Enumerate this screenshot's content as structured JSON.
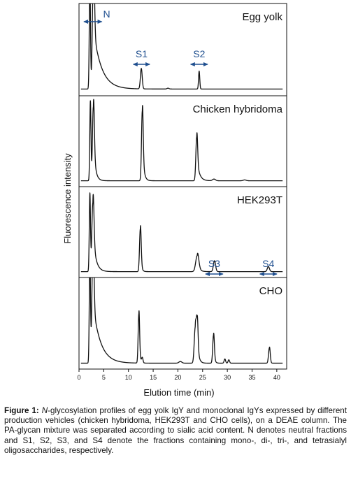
{
  "chart_data": {
    "type": "line",
    "stacked_panels": true,
    "xlabel": "Elution time (min)",
    "ylabel": "Fluorescence intensity",
    "xlim": [
      0,
      42
    ],
    "x_ticks": [
      0,
      5,
      10,
      15,
      20,
      25,
      30,
      35,
      40
    ],
    "grid": false,
    "legend": "none",
    "line_color": "#111111",
    "arrow_color": "#1f4f8f",
    "panels": [
      {
        "title": "Egg yolk",
        "baseline": 0.03,
        "peaks": [
          {
            "x": 2.2,
            "height": 1.3,
            "width": 0.12,
            "tail": 0
          },
          {
            "x": 2.9,
            "height": 1.3,
            "width": 0.2,
            "tail": 1.6
          },
          {
            "x": 12.6,
            "height": 0.24,
            "width": 0.18,
            "tail": 0
          },
          {
            "x": 18.0,
            "height": 0.01,
            "width": 0.2,
            "tail": 0
          },
          {
            "x": 24.3,
            "height": 0.21,
            "width": 0.12,
            "tail": 0
          }
        ],
        "fractions": [
          {
            "label": "N",
            "x_from": 1.0,
            "x_to": 4.6
          },
          {
            "label": "S1",
            "x_from": 11.0,
            "x_to": 14.3
          },
          {
            "label": "S2",
            "x_from": 22.6,
            "x_to": 26.0
          }
        ]
      },
      {
        "title": "Chicken hybridoma",
        "baseline": 0.02,
        "peaks": [
          {
            "x": 2.3,
            "height": 0.95,
            "width": 0.12,
            "tail": 0
          },
          {
            "x": 2.9,
            "height": 0.88,
            "width": 0.18,
            "tail": 0.4
          },
          {
            "x": 12.8,
            "height": 0.83,
            "width": 0.16,
            "tail": 0.3
          },
          {
            "x": 23.8,
            "height": 0.52,
            "width": 0.17,
            "tail": 0.5
          },
          {
            "x": 27.3,
            "height": 0.02,
            "width": 0.3,
            "tail": 0
          },
          {
            "x": 33.5,
            "height": 0.01,
            "width": 0.3,
            "tail": 0
          }
        ],
        "fractions": []
      },
      {
        "title": "HEK293T",
        "baseline": 0.02,
        "peaks": [
          {
            "x": 2.2,
            "height": 0.93,
            "width": 0.12,
            "tail": 0
          },
          {
            "x": 2.8,
            "height": 0.82,
            "width": 0.2,
            "tail": 0.6
          },
          {
            "x": 12.4,
            "height": 0.51,
            "width": 0.16,
            "tail": 0.2
          },
          {
            "x": 23.9,
            "height": 0.19,
            "width": 0.3,
            "tail": 0.4
          },
          {
            "x": 27.4,
            "height": 0.13,
            "width": 0.22,
            "tail": 0
          },
          {
            "x": 38.3,
            "height": 0.06,
            "width": 0.22,
            "tail": 0
          }
        ],
        "fractions": [
          {
            "label": "S3",
            "x_from": 25.6,
            "x_to": 29.1
          },
          {
            "label": "S4",
            "x_from": 36.6,
            "x_to": 40.0
          }
        ]
      },
      {
        "title": "CHO",
        "baseline": 0.02,
        "peaks": [
          {
            "x": 2.2,
            "height": 1.3,
            "width": 0.12,
            "tail": 0
          },
          {
            "x": 2.8,
            "height": 1.3,
            "width": 0.2,
            "tail": 1.5
          },
          {
            "x": 12.1,
            "height": 0.58,
            "width": 0.14,
            "tail": 0.2
          },
          {
            "x": 12.8,
            "height": 0.06,
            "width": 0.14,
            "tail": 0
          },
          {
            "x": 20.5,
            "height": 0.02,
            "width": 0.3,
            "tail": 0
          },
          {
            "x": 23.5,
            "height": 0.41,
            "width": 0.2,
            "tail": 0.3
          },
          {
            "x": 23.9,
            "height": 0.44,
            "width": 0.16,
            "tail": 0.3
          },
          {
            "x": 27.2,
            "height": 0.33,
            "width": 0.16,
            "tail": 0.2
          },
          {
            "x": 29.5,
            "height": 0.05,
            "width": 0.15,
            "tail": 0
          },
          {
            "x": 30.3,
            "height": 0.04,
            "width": 0.15,
            "tail": 0
          },
          {
            "x": 38.5,
            "height": 0.18,
            "width": 0.17,
            "tail": 0.1
          }
        ],
        "fractions": []
      }
    ]
  },
  "caption": {
    "label": "Figure 1:",
    "n_italic": "N",
    "text": "-glycosylation profiles of egg yolk IgY and monoclonal IgYs expressed by different production vehicles (chicken hybridoma, HEK293T and CHO cells), on a DEAE column. The PA-glycan mixture was separated according to sialic acid content. N denotes neutral fractions and S1, S2, S3, and S4 denote the fractions containing mono-, di-, tri-, and tetrasialyl oligosaccharides, respectively."
  }
}
